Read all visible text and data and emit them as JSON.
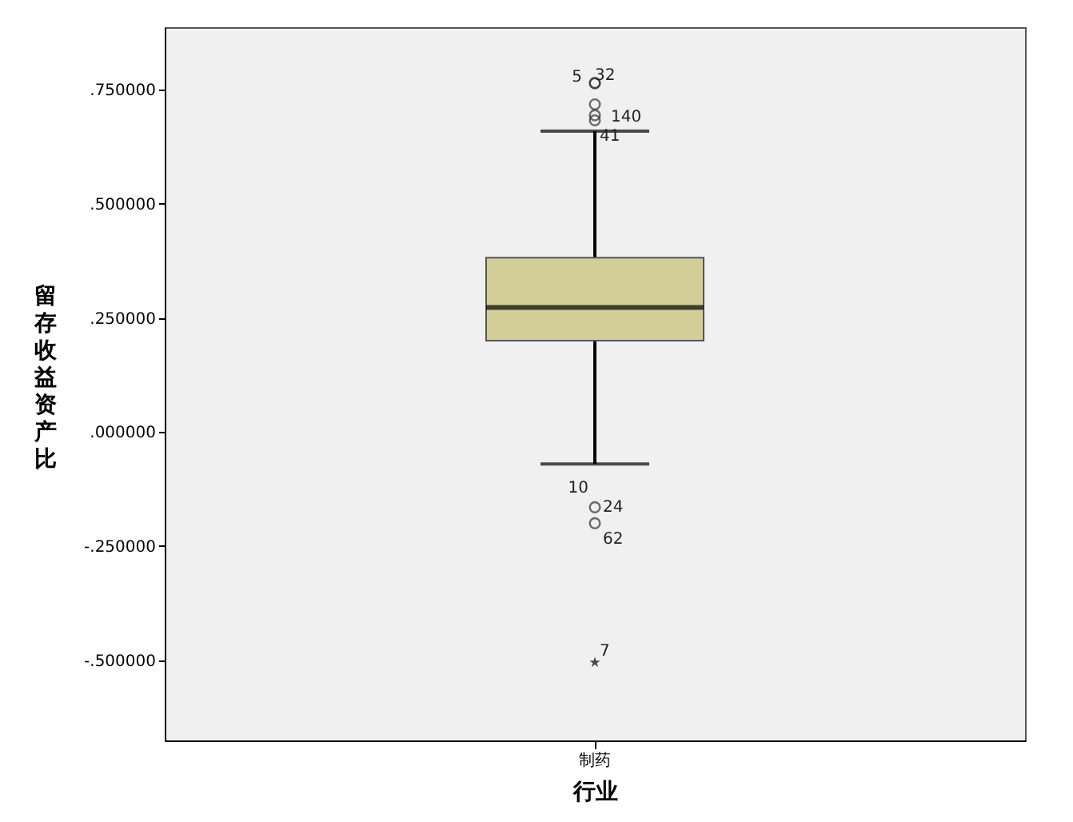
{
  "chart_data": {
    "type": "box",
    "xlabel": "行业",
    "ylabel": "留存收益资产比",
    "categories": [
      "制药"
    ],
    "boxes": [
      {
        "low": -0.07,
        "q1": 0.2,
        "median": 0.273,
        "q3": 0.382,
        "high": 0.659,
        "outliers": [
          0.764,
          0.765,
          0.718,
          0.694,
          0.683,
          -0.165,
          -0.2
        ]
      }
    ],
    "series": [
      {
        "type": "scatter",
        "marker": "star",
        "color": "#000000",
        "x": [
          "制药"
        ],
        "values": [
          -0.505
        ]
      }
    ],
    "colors": [
      "#d3ce97"
    ],
    "ylim": [
      -0.676,
      0.887
    ],
    "yticks": [
      {
        "value": -0.5,
        "label": "-.500000"
      },
      {
        "value": -0.25,
        "label": "-.250000"
      },
      {
        "value": 0,
        "label": ".000000"
      },
      {
        "value": 0.25,
        "label": ".250000"
      },
      {
        "value": 0.5,
        "label": ".500000"
      },
      {
        "value": 0.75,
        "label": ".750000"
      }
    ],
    "grid": false,
    "annotations": [
      "32",
      "5",
      "140",
      "41",
      "10",
      "24",
      "62",
      "7"
    ]
  }
}
